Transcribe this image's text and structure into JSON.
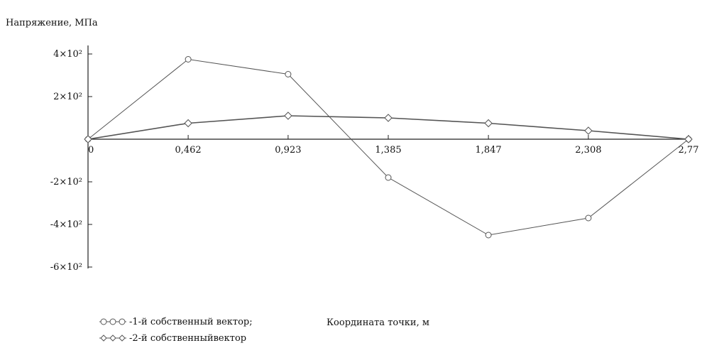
{
  "chart_data": {
    "type": "line",
    "ylabel": "Напряжение, МПа",
    "xlabel": "Координата точки, м",
    "x": [
      0,
      0.462,
      0.923,
      1.385,
      1.847,
      2.308,
      2.77
    ],
    "x_tick_labels": [
      "0",
      "0,462",
      "0,923",
      "1,385",
      "1,847",
      "2,308",
      "2,77"
    ],
    "y_ticks": [
      400,
      200,
      -200,
      -400,
      -600
    ],
    "y_tick_labels": [
      "4×10²",
      "2×10²",
      "-2×10²",
      "-4×10²",
      "-6×10²"
    ],
    "ylim": [
      -600,
      400
    ],
    "xlim": [
      0,
      2.77
    ],
    "series": [
      {
        "name": "1-й собственный вектор;",
        "values": [
          0,
          375,
          305,
          -180,
          -450,
          -370,
          0
        ],
        "color": "#555555",
        "marker": "circle"
      },
      {
        "name": "2-й собственный вектор",
        "values": [
          0,
          75,
          110,
          100,
          75,
          40,
          0
        ],
        "color": "#555555",
        "marker": "diamond"
      }
    ],
    "legend_position": "bottom-left",
    "legend_labels": [
      "-1-й  собственный вектор;",
      "-2-й  собственныйвектор"
    ]
  }
}
